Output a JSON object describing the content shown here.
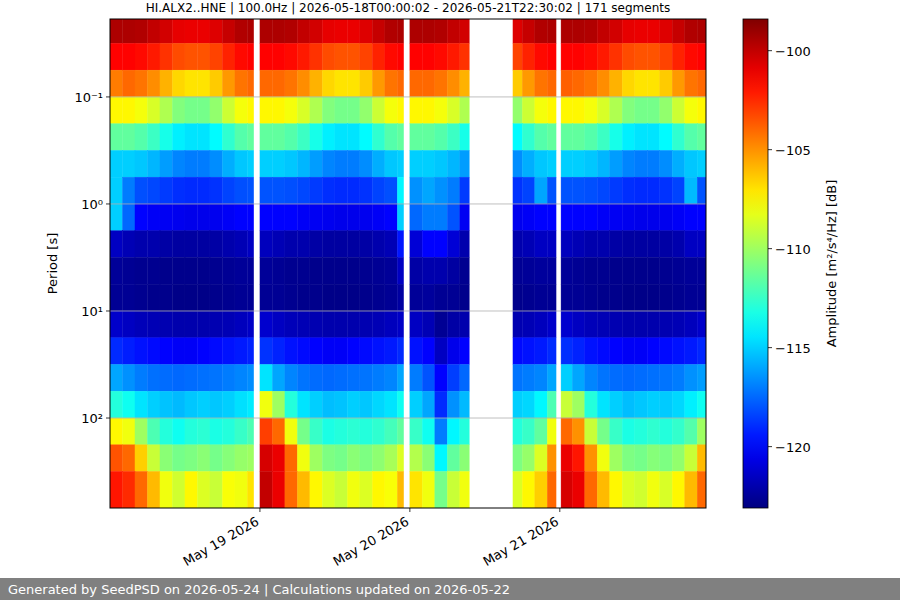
{
  "chart_data": {
    "type": "heatmap",
    "title": "HI.ALX2..HNE | 100.0Hz | 2026-05-18T00:00:02 - 2026-05-21T22:30:02 | 171 segments",
    "y_label": "Period [s]",
    "footer": "Generated by SeedPSD on 2026-05-24 | Calculations updated on 2026-05-22",
    "log": "y",
    "grid": true,
    "xlim": [
      "2026-05-18T00:00:02",
      "2026-05-21T23:24:00"
    ],
    "xticks": [
      {
        "value": "2026-05-19T00:00",
        "label": "May 19 2026"
      },
      {
        "value": "2026-05-20T00:00",
        "label": "May 20 2026"
      },
      {
        "value": "2026-05-21T00:00",
        "label": "May 21 2026"
      }
    ],
    "ylim": [
      693,
      0.0187
    ],
    "yticks": [
      {
        "value": 0.1,
        "label": "10⁻¹"
      },
      {
        "value": 1,
        "label": "10⁰"
      },
      {
        "value": 10,
        "label": "10¹"
      },
      {
        "value": 100,
        "label": "10²"
      }
    ],
    "x_edges": [
      "2026-05-18T00:00:02",
      "2026-05-18T02:00",
      "2026-05-18T04:00",
      "2026-05-18T06:00",
      "2026-05-18T08:00",
      "2026-05-18T10:00",
      "2026-05-18T12:00",
      "2026-05-18T14:00",
      "2026-05-18T16:00",
      "2026-05-18T18:00",
      "2026-05-18T20:00",
      "2026-05-18T22:00",
      "2026-05-18T23:00",
      "2026-05-19T00:00",
      "2026-05-19T02:00",
      "2026-05-19T04:00",
      "2026-05-19T06:00",
      "2026-05-19T08:00",
      "2026-05-19T10:00",
      "2026-05-19T12:00",
      "2026-05-19T14:00",
      "2026-05-19T16:00",
      "2026-05-19T18:00",
      "2026-05-19T20:00",
      "2026-05-19T22:00",
      "2026-05-19T23:00",
      "2026-05-20T00:00",
      "2026-05-20T02:00",
      "2026-05-20T04:00",
      "2026-05-20T06:00",
      "2026-05-20T08:00",
      "2026-05-20T09:30",
      "2026-05-20T16:30",
      "2026-05-20T18:00",
      "2026-05-20T20:00",
      "2026-05-20T22:00",
      "2026-05-20T23:24",
      "2026-05-21T00:12",
      "2026-05-21T02:00",
      "2026-05-21T04:00",
      "2026-05-21T06:00",
      "2026-05-21T08:00",
      "2026-05-21T10:00",
      "2026-05-21T12:00",
      "2026-05-21T14:00",
      "2026-05-21T16:00",
      "2026-05-21T18:00",
      "2026-05-21T20:00",
      "2026-05-21T22:00",
      "2026-05-21T23:24"
    ],
    "y_edges": [
      0.0187,
      0.0316,
      0.0562,
      0.1,
      0.178,
      0.316,
      0.562,
      1,
      1.78,
      3.16,
      5.62,
      10,
      17.8,
      31.6,
      56.2,
      100,
      178,
      316,
      693
    ],
    "z": [
      [
        -99.5,
        -99.5,
        -99.6,
        -100.0,
        -100.4,
        -100.9,
        -101.0,
        -101.0,
        -100.7,
        -100.1,
        -99.6,
        -99.5,
        null,
        -99.5,
        -99.5,
        -99.6,
        -100.0,
        -100.4,
        -100.9,
        -101.0,
        -101.0,
        -100.7,
        -100.1,
        -99.6,
        -99.5,
        null,
        -99.5,
        -99.5,
        -99.6,
        -100.0,
        -100.4,
        null,
        -100.7,
        -100.1,
        -99.6,
        -99.5,
        null,
        -99.5,
        -99.5,
        -99.6,
        -100.0,
        -100.4,
        -100.9,
        -101.0,
        -101.0,
        -100.7,
        -100.1,
        -99.6,
        -99.5
      ],
      [
        -101.5,
        -101.5,
        -101.7,
        -102.1,
        -102.7,
        -103.3,
        -103.5,
        -103.5,
        -103.1,
        -102.3,
        -101.7,
        -101.5,
        null,
        -101.5,
        -101.5,
        -101.7,
        -102.1,
        -102.7,
        -103.3,
        -103.5,
        -103.5,
        -103.1,
        -102.3,
        -101.7,
        -101.5,
        null,
        -101.5,
        -101.5,
        -101.7,
        -102.1,
        -102.7,
        null,
        -103.1,
        -102.3,
        -101.7,
        -101.5,
        null,
        -101.5,
        -101.5,
        -101.7,
        -102.1,
        -102.7,
        -103.3,
        -103.5,
        -103.5,
        -103.1,
        -102.3,
        -101.7,
        -101.5
      ],
      [
        -104.5,
        -104,
        -104.3,
        -104.9,
        -105.8,
        -106.7,
        -107,
        -107,
        -106.4,
        -105.2,
        -104.3,
        -104,
        null,
        -104,
        -104,
        -104.3,
        -104.9,
        -105.8,
        -106.7,
        -107,
        -107,
        -106.4,
        -105.2,
        -104.3,
        -104,
        null,
        -104,
        -104,
        -104.3,
        -104.9,
        -105.8,
        null,
        -106.4,
        -105.2,
        -104.3,
        -104,
        null,
        -103.8,
        -104,
        -104.3,
        -104.9,
        -105.8,
        -106.7,
        -107,
        -107,
        -106.4,
        -105.2,
        -104.3,
        -104
      ],
      [
        -107.5,
        -107.5,
        -107.9,
        -108.6,
        -109.6,
        -110.7,
        -111,
        -111,
        -110.3,
        -108.9,
        -107.9,
        -107.5,
        null,
        -107.5,
        -107.5,
        -107.9,
        -108.6,
        -109.6,
        -110.7,
        -111,
        -111,
        -110.3,
        -108.9,
        -107.9,
        -107.5,
        null,
        -107.5,
        -107.5,
        -107.9,
        -108.6,
        -109.6,
        null,
        -110.3,
        -108.9,
        -107.9,
        -107.5,
        null,
        -107.5,
        -107.5,
        -107.9,
        -108.6,
        -109.6,
        -110.7,
        -111,
        -111,
        -110.3,
        -108.9,
        -107.9,
        -107.5
      ],
      [
        -111.5,
        -111.5,
        -111.8,
        -112.4,
        -113.3,
        -114.2,
        -114.5,
        -114.5,
        -113.9,
        -112.7,
        -111.8,
        -111.5,
        null,
        -111.5,
        -111.5,
        -111.8,
        -112.4,
        -113.3,
        -114.2,
        -114.5,
        -114.5,
        -113.9,
        -112.7,
        -111.8,
        -111.5,
        null,
        -111.5,
        -111.5,
        -111.8,
        -112.4,
        -113.3,
        null,
        -113.9,
        -112.7,
        -111.8,
        -111.5,
        null,
        -111.5,
        -111.5,
        -111.8,
        -112.4,
        -113.3,
        -114.2,
        -114.5,
        -114.5,
        -113.9,
        -112.7,
        -111.8,
        -111.5
      ],
      [
        -115,
        -115,
        -115.2,
        -115.6,
        -116.2,
        -116.8,
        -117,
        -117,
        -116.6,
        -115.8,
        -115.2,
        -115,
        null,
        -115,
        -115,
        -115.2,
        -115.6,
        -116.2,
        -116.8,
        -117,
        -117,
        -116.6,
        -115.8,
        -115.2,
        -115,
        null,
        -115,
        -115,
        -115.2,
        -115.6,
        -116.2,
        null,
        -116.6,
        -115.8,
        -115.2,
        -115,
        null,
        -115,
        -115,
        -115.2,
        -115.6,
        -116.2,
        -116.8,
        -117,
        -117,
        -116.6,
        -115.8,
        -115.2,
        -115
      ],
      [
        -115,
        -117,
        -118.1,
        -118.3,
        -118.6,
        -118.9,
        -119,
        -119,
        -118.8,
        -118.4,
        -118.1,
        -118,
        null,
        -118,
        -118,
        -118.1,
        -118.3,
        -118.6,
        -118.9,
        -119,
        -119,
        -118.8,
        -118.4,
        -118.1,
        -114,
        null,
        -116.5,
        -116,
        -116.5,
        -117,
        -118.6,
        null,
        -118.8,
        -118.4,
        -116,
        -118,
        null,
        -118,
        -118,
        -118.1,
        -118.3,
        -118.6,
        -118.9,
        -119,
        -119,
        -118.8,
        -118.4,
        -115.5,
        -118
      ],
      [
        -115,
        -117.5,
        -120,
        -120.2,
        -120.3,
        -120.4,
        -120.5,
        -120.5,
        -120.4,
        -120.2,
        -120,
        -120,
        null,
        -120,
        -120,
        -120,
        -120.2,
        -120.3,
        -120.4,
        -120.5,
        -120.5,
        -120.4,
        -120.2,
        -120,
        -115,
        null,
        -117.5,
        -117,
        -117,
        -118,
        -120.3,
        null,
        -120.4,
        -120.2,
        -120,
        -120,
        null,
        -120,
        -120,
        -120,
        -120.2,
        -120.3,
        -120.4,
        -120.5,
        -120.5,
        -120.4,
        -120.2,
        -120,
        -120
      ],
      [
        -121.5,
        -121.8,
        -122,
        -122,
        -122.2,
        -122.3,
        -122.3,
        -122.3,
        -122.2,
        -122,
        -121.8,
        -121.5,
        null,
        -121.6,
        -121.8,
        -122,
        -122,
        -122.2,
        -122.3,
        -122.3,
        -122.3,
        -122.2,
        -122,
        -121.8,
        -119.5,
        null,
        -121,
        -120,
        -120,
        -121,
        -122,
        null,
        -122,
        -121.8,
        -121.5,
        -121.5,
        null,
        -121.6,
        -121.8,
        -122,
        -122,
        -122.2,
        -122.3,
        -122.3,
        -122.3,
        -122.2,
        -122,
        -121.5,
        -121.5
      ],
      [
        -122.5,
        -122.6,
        -122.7,
        -122.7,
        -122.8,
        -122.8,
        -122.8,
        -122.8,
        -122.7,
        -122.6,
        -122.5,
        -122.5,
        null,
        -122.5,
        -122.6,
        -122.7,
        -122.7,
        -122.8,
        -122.8,
        -122.8,
        -122.8,
        -122.7,
        -122.6,
        -122.5,
        -121.5,
        null,
        -122.2,
        -122,
        -122,
        -122.3,
        -122.7,
        null,
        -122.6,
        -122.5,
        -122.4,
        -122.4,
        null,
        -122.5,
        -122.6,
        -122.7,
        -122.7,
        -122.8,
        -122.8,
        -122.8,
        -122.8,
        -122.7,
        -122.6,
        -122.5,
        -122.5
      ],
      [
        -122.6,
        -122.6,
        -122.7,
        -122.8,
        -122.8,
        -122.9,
        -122.9,
        -122.9,
        -122.8,
        -122.7,
        -122.6,
        -122.6,
        null,
        -122.6,
        -122.6,
        -122.7,
        -122.8,
        -122.8,
        -122.9,
        -122.9,
        -122.9,
        -122.8,
        -122.7,
        -122.6,
        -122.3,
        null,
        -122.5,
        -122.4,
        -122.6,
        -122.6,
        -122.8,
        null,
        -122.8,
        -122.7,
        -122.6,
        -122.6,
        null,
        -122.6,
        -122.6,
        -122.7,
        -122.8,
        -122.8,
        -122.9,
        -122.9,
        -122.9,
        -122.8,
        -122.7,
        -122.6,
        -122.6
      ],
      [
        -121.3,
        -121.5,
        -121.7,
        -121.8,
        -121.9,
        -122,
        -122,
        -122,
        -121.9,
        -121.8,
        -121.6,
        -121.4,
        null,
        -121.2,
        -121.5,
        -121.7,
        -121.8,
        -121.9,
        -122,
        -122,
        -122,
        -121.9,
        -121.8,
        -121.6,
        -121.4,
        null,
        -121.5,
        -121.8,
        -122.6,
        -122.2,
        -122,
        null,
        -121.9,
        -121.8,
        -121.6,
        -121.3,
        null,
        -121.2,
        -121.5,
        -121.7,
        -121.8,
        -121.9,
        -122,
        -122,
        -122,
        -121.9,
        -121.8,
        -121.6,
        -121.3
      ],
      [
        -119,
        -119.3,
        -119.6,
        -119.8,
        -120,
        -120.2,
        -120.2,
        -120,
        -119.8,
        -119.6,
        -119.4,
        -119.2,
        null,
        -118.8,
        -119.2,
        -119.6,
        -119.8,
        -120,
        -120.2,
        -120.2,
        -120,
        -119.8,
        -119.6,
        -119.4,
        -119,
        null,
        -119.6,
        -120,
        -121.5,
        -120.5,
        -120,
        null,
        -119.8,
        -119.6,
        -119.4,
        -119,
        null,
        -118.9,
        -119.2,
        -119.6,
        -119.8,
        -120,
        -120.2,
        -120.2,
        -120,
        -119.8,
        -119.6,
        -119.4,
        -119.1
      ],
      [
        -116,
        -116.5,
        -117,
        -117.3,
        -117.4,
        -117.5,
        -117.4,
        -117.3,
        -117.2,
        -117,
        -116.8,
        -116.6,
        null,
        -114.5,
        -116,
        -116.8,
        -117.2,
        -117.4,
        -117.5,
        -117.4,
        -117.3,
        -117.2,
        -117,
        -116.8,
        -116,
        null,
        -117,
        -118,
        -120,
        -118.5,
        -117.5,
        null,
        -117.2,
        -117,
        -116.8,
        -116,
        null,
        -115,
        -116,
        -116.8,
        -117.2,
        -117.4,
        -117.5,
        -117.4,
        -117.3,
        -117.2,
        -117,
        -116.5,
        -116.2
      ],
      [
        -113,
        -113.5,
        -114.5,
        -115,
        -115.3,
        -115.5,
        -115.2,
        -115,
        -115.2,
        -115,
        -114.6,
        -114.3,
        null,
        -108,
        -110,
        -113,
        -114.5,
        -115,
        -115.4,
        -115.3,
        -115,
        -115.2,
        -114.8,
        -114.5,
        -113.5,
        null,
        -115,
        -116,
        -119,
        -116.5,
        -115.5,
        null,
        -115,
        -114.8,
        -114,
        -112,
        null,
        -109,
        -110,
        -113,
        -114.5,
        -115,
        -115.4,
        -115.2,
        -115,
        -115.1,
        -114.8,
        -114.2,
        -113.5
      ],
      [
        -107.5,
        -108,
        -110,
        -112,
        -113,
        -113.5,
        -113,
        -112.8,
        -113.2,
        -113,
        -112.5,
        -112,
        null,
        -103,
        -104,
        -108,
        -111,
        -112.5,
        -113.2,
        -113,
        -112.8,
        -113,
        -112.7,
        -112.2,
        -111.5,
        null,
        -112.5,
        -113.5,
        -117,
        -114,
        -113,
        null,
        -113,
        -112.5,
        -111.5,
        -108,
        null,
        -104,
        -105,
        -109,
        -111,
        -112.5,
        -113.2,
        -113,
        -112.7,
        -113,
        -112.6,
        -111.8,
        -110
      ],
      [
        -103.5,
        -104,
        -106.5,
        -109,
        -110.5,
        -111,
        -110.8,
        -110.5,
        -111,
        -110.6,
        -110.2,
        -110,
        null,
        -100.5,
        -101,
        -104,
        -108,
        -110,
        -110.8,
        -111,
        -110.5,
        -110.8,
        -110.4,
        -109.8,
        -108.5,
        null,
        -109.5,
        -110.5,
        -114,
        -111.5,
        -110.5,
        null,
        -110.8,
        -110.2,
        -108.5,
        -105,
        null,
        -101,
        -102,
        -105,
        -108,
        -110,
        -110.8,
        -111,
        -110.6,
        -110.8,
        -110.3,
        -109,
        -106
      ],
      [
        -102,
        -102.5,
        -104,
        -106,
        -108,
        -108.8,
        -107.5,
        -108.5,
        -109,
        -107.8,
        -108,
        -107,
        null,
        -100,
        -101,
        -104,
        -106,
        -107.5,
        -108.5,
        -109,
        -108,
        -108.5,
        -107.5,
        -107.8,
        -106,
        null,
        -107,
        -108,
        -111,
        -109,
        -108,
        null,
        -108.5,
        -107.5,
        -106.5,
        -104,
        null,
        -100.5,
        -101,
        -104,
        -106,
        -107.5,
        -108.5,
        -108.8,
        -108,
        -108.6,
        -107.5,
        -106,
        -104
      ]
    ],
    "colorbar": {
      "label": "Amplitude [m²/s⁴/Hz] [dB]",
      "range": [
        -123.1,
        -98.4
      ],
      "ticks": [
        {
          "value": -100,
          "label": "−100"
        },
        {
          "value": -105,
          "label": "−105"
        },
        {
          "value": -110,
          "label": "−110"
        },
        {
          "value": -115,
          "label": "−115"
        },
        {
          "value": -120,
          "label": "−120"
        }
      ]
    }
  }
}
